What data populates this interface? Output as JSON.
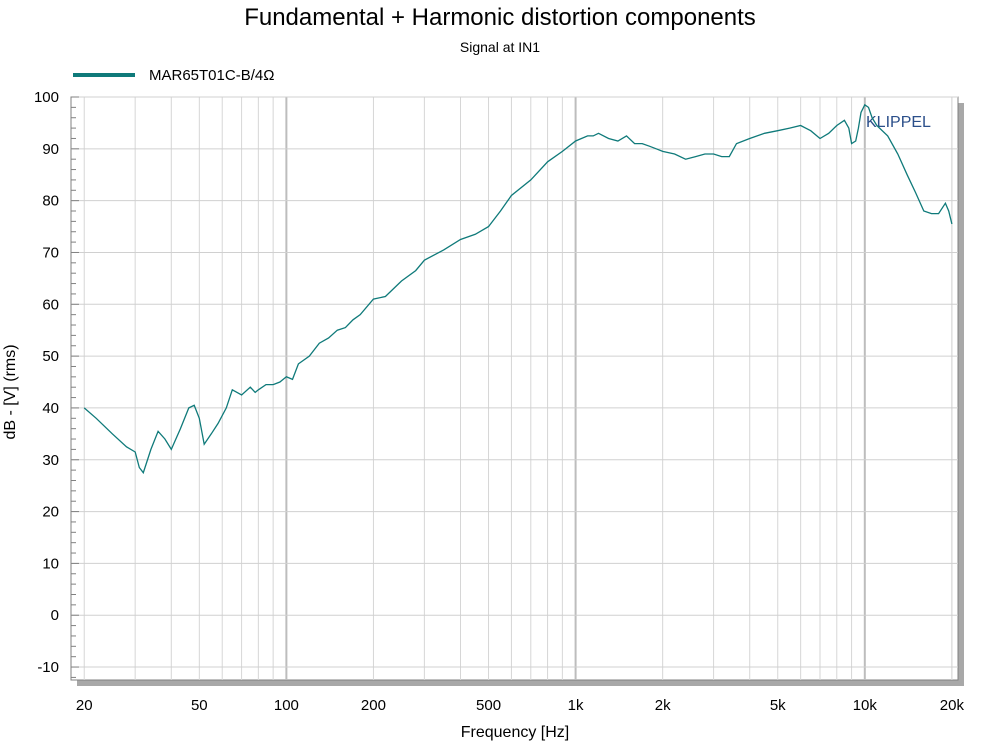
{
  "chart_data": {
    "type": "line",
    "title": "Fundamental + Harmonic distortion components",
    "subtitle": "Signal at IN1",
    "xlabel": "Frequency [Hz]",
    "ylabel": "dB - [V]  (rms)",
    "x_scale": "log",
    "xlim": [
      18,
      21000
    ],
    "ylim": [
      -12.5,
      100
    ],
    "x_ticks": [
      20,
      50,
      100,
      200,
      500,
      1000,
      2000,
      5000,
      10000,
      20000
    ],
    "x_tick_labels": [
      "20",
      "50",
      "100",
      "200",
      "500",
      "1k",
      "2k",
      "5k",
      "10k",
      "20k"
    ],
    "y_ticks": [
      -10,
      0,
      10,
      20,
      30,
      40,
      50,
      60,
      70,
      80,
      90,
      100
    ],
    "y_tick_labels": [
      "-10",
      "0",
      "10",
      "20",
      "30",
      "40",
      "50",
      "60",
      "70",
      "80",
      "90",
      "100"
    ],
    "grid": true,
    "legend_position": "top-left",
    "watermark": "KLIPPEL",
    "series": [
      {
        "name": "MAR65T01C-B/4Ω",
        "color": "#0f7a7a",
        "x": [
          20,
          22,
          25,
          28,
          30,
          31,
          32,
          34,
          36,
          38,
          40,
          43,
          46,
          48,
          50,
          52,
          55,
          58,
          62,
          65,
          70,
          75,
          78,
          80,
          85,
          90,
          95,
          100,
          105,
          110,
          120,
          130,
          140,
          150,
          160,
          170,
          180,
          200,
          220,
          250,
          280,
          300,
          350,
          400,
          450,
          500,
          550,
          600,
          700,
          800,
          900,
          1000,
          1100,
          1150,
          1200,
          1300,
          1400,
          1500,
          1600,
          1700,
          1800,
          1900,
          2000,
          2200,
          2400,
          2600,
          2800,
          3000,
          3200,
          3400,
          3600,
          4000,
          4500,
          5000,
          5500,
          6000,
          6500,
          7000,
          7500,
          8000,
          8500,
          8800,
          9000,
          9300,
          9500,
          9700,
          10000,
          10300,
          10600,
          11000,
          12000,
          13000,
          14000,
          15000,
          16000,
          17000,
          18000,
          19000,
          19500,
          20000
        ],
        "y": [
          40,
          38,
          35,
          32.5,
          31.5,
          28.5,
          27.5,
          32,
          35.5,
          34,
          32,
          36,
          40,
          40.5,
          38,
          33,
          35,
          37,
          40,
          43.5,
          42.5,
          44,
          43,
          43.5,
          44.5,
          44.5,
          45,
          46,
          45.5,
          48.5,
          50,
          52.5,
          53.5,
          55,
          55.5,
          57,
          58,
          61,
          61.5,
          64.5,
          66.5,
          68.5,
          70.5,
          72.5,
          73.5,
          75,
          78,
          81,
          84,
          87.5,
          89.5,
          91.5,
          92.5,
          92.5,
          93,
          92,
          91.5,
          92.5,
          91,
          91,
          90.5,
          90,
          89.5,
          89,
          88,
          88.5,
          89,
          89,
          88.5,
          88.5,
          91,
          92,
          93,
          93.5,
          94,
          94.5,
          93.5,
          92,
          93,
          94.5,
          95.5,
          94,
          91,
          91.5,
          94,
          97,
          98.5,
          98,
          96,
          94.5,
          92.5,
          89,
          85,
          81.5,
          78,
          77.5,
          77.5,
          79.5,
          78,
          75.5
        ]
      }
    ]
  }
}
